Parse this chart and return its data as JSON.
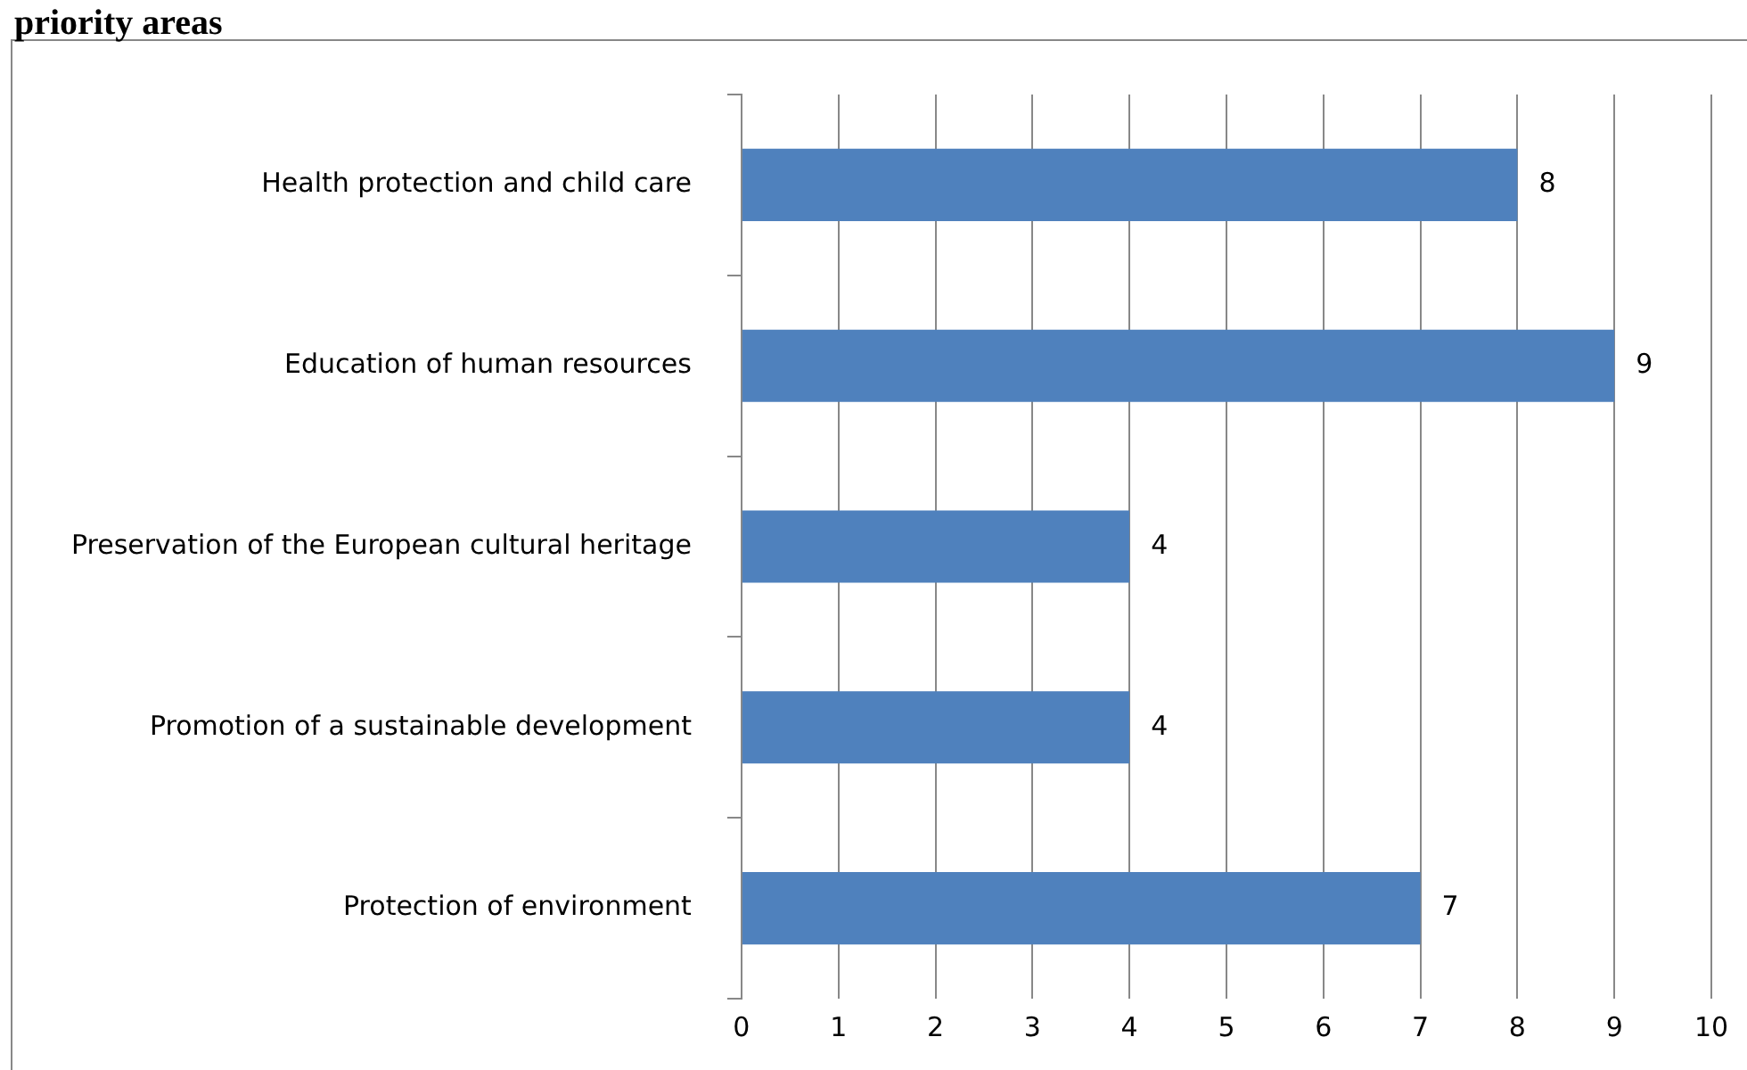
{
  "chart_data": {
    "type": "bar",
    "orientation": "horizontal",
    "title": "priority areas",
    "categories": [
      "Health protection and child care",
      "Education of human resources",
      "Preservation of the European cultural heritage",
      "Promotion of a sustainable development",
      "Protection of environment"
    ],
    "values": [
      8,
      9,
      4,
      4,
      7
    ],
    "color": "#4f81bd",
    "xlim": [
      0,
      10
    ],
    "xticks": [
      0,
      1,
      2,
      3,
      4,
      5,
      6,
      7,
      8,
      9,
      10
    ],
    "grid": "x",
    "data_labels": true,
    "legend": false
  }
}
